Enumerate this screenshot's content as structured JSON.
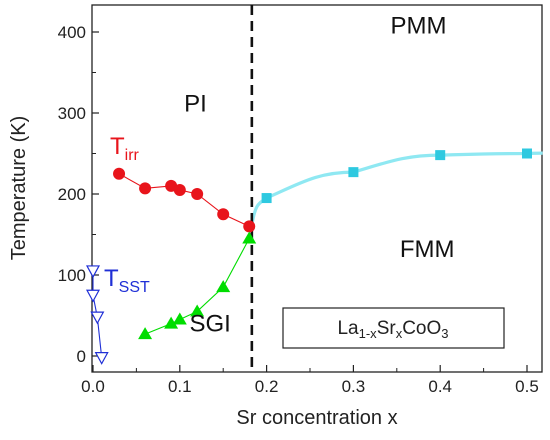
{
  "chart_data": {
    "type": "scatter",
    "xlabel": "Sr concentration x",
    "ylabel": "Temperature (K)",
    "xlim": [
      0,
      0.52
    ],
    "ylim": [
      -20,
      430
    ],
    "x_ticks": [
      0,
      0.1,
      0.2,
      0.3,
      0.4,
      0.5
    ],
    "x_tick_labels": [
      "0.0",
      "0.1",
      "0.2",
      "0.3",
      "0.4",
      "0.5"
    ],
    "y_ticks": [
      0,
      100,
      200,
      300,
      400
    ],
    "y_tick_labels": [
      "0",
      "100",
      "200",
      "300",
      "400"
    ],
    "grid": false,
    "series": [
      {
        "name": "T_irr",
        "marker": "circle",
        "color": "#e8141b",
        "connected": true,
        "x": [
          0.03,
          0.06,
          0.09,
          0.1,
          0.12,
          0.15,
          0.18
        ],
        "y": [
          225,
          207,
          210,
          205,
          200,
          175,
          160
        ]
      },
      {
        "name": "T_SST",
        "marker": "triangle-down-open",
        "color": "#1f2fd6",
        "connected": true,
        "x": [
          0.0,
          0.0,
          0.005,
          0.01
        ],
        "y": [
          105,
          75,
          48,
          -2
        ]
      },
      {
        "name": "SGI boundary",
        "marker": "triangle-up",
        "color": "#00dd00",
        "connected": true,
        "x": [
          0.06,
          0.09,
          0.1,
          0.12,
          0.15,
          0.18
        ],
        "y": [
          27,
          40,
          45,
          55,
          85,
          145
        ]
      },
      {
        "name": "FMM boundary",
        "marker": "square",
        "color": "#2ec9e0",
        "line_color": "#8fe8f2",
        "connected": true,
        "x": [
          0.2,
          0.3,
          0.4,
          0.5
        ],
        "y": [
          195,
          227,
          248,
          250
        ]
      }
    ],
    "vertical_line": {
      "x": 0.183,
      "style": "dashed",
      "color": "#111111"
    },
    "annotations": [
      {
        "text": "PMM",
        "x": 0.375,
        "y": 398
      },
      {
        "text": "PI",
        "x": 0.118,
        "y": 302
      },
      {
        "text": "FMM",
        "x": 0.385,
        "y": 122
      },
      {
        "text": "SGI",
        "x": 0.135,
        "y": 30
      }
    ],
    "labels": {
      "t_irr_main": "T",
      "t_irr_sub": "irr",
      "t_sst_main": "T",
      "t_sst_sub": "SST",
      "formula_la": "La",
      "formula_sub1": "1-x",
      "formula_sr": "Sr",
      "formula_sub2": "x",
      "formula_coo": "CoO",
      "formula_sub3": "3"
    },
    "colors": {
      "t_irr_label": "#e8141b",
      "t_sst_label": "#1f2fd6"
    }
  }
}
